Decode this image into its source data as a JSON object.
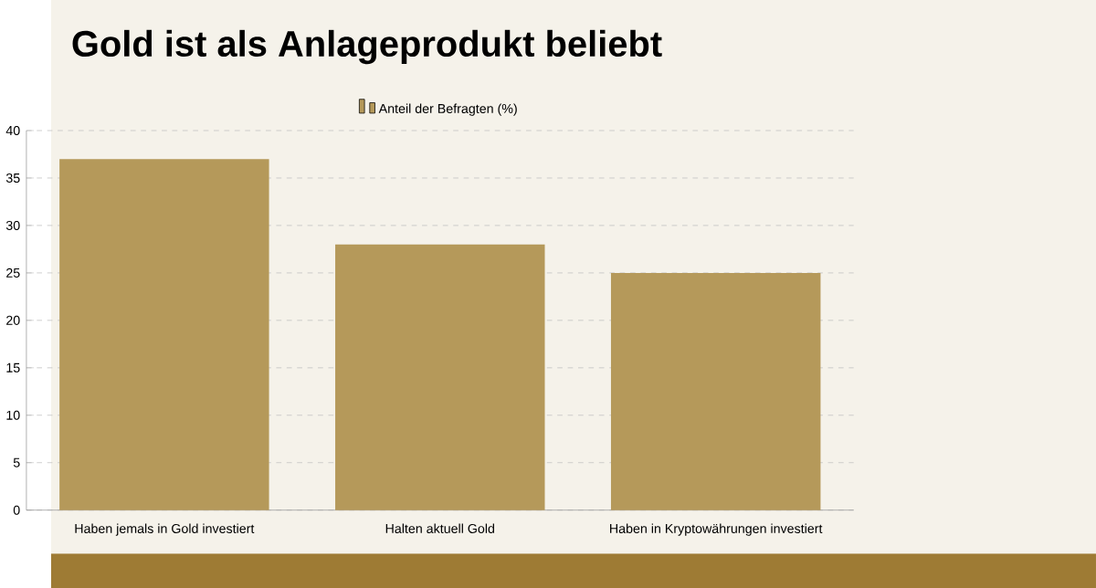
{
  "chart_data": {
    "type": "bar",
    "title": "Gold ist als Anlageprodukt beliebt",
    "categories": [
      "Haben jemals in Gold investiert",
      "Halten aktuell Gold",
      "Haben in Kryptowährungen investiert"
    ],
    "series": [
      {
        "name": "Anteil der Befragten (%)",
        "color": "#b5995a",
        "values": [
          37,
          28,
          25
        ]
      }
    ],
    "ylim": [
      0,
      40
    ],
    "yticks": [
      0,
      5,
      10,
      15,
      20,
      25,
      30,
      35,
      40
    ],
    "grid": "y",
    "legend": "top"
  }
}
